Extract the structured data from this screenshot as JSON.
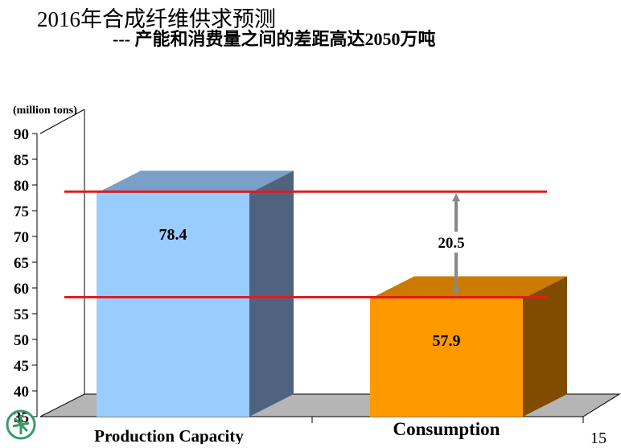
{
  "slide": {
    "title": "2016年合成纤维供求预测",
    "subtitle": "--- 产能和消费量之间的差距高达2050万吨",
    "page_number": "15"
  },
  "chart_data": {
    "type": "bar",
    "title": "2016年合成纤维供求预测",
    "ylabel": "(million tons)",
    "xlabel": "",
    "ylim": [
      35,
      90
    ],
    "yticks": [
      35,
      40,
      45,
      50,
      55,
      60,
      65,
      70,
      75,
      80,
      85,
      90
    ],
    "categories": [
      "Production Capacity",
      "Consumption"
    ],
    "values": [
      78.4,
      57.9
    ],
    "data_labels": [
      "78.4",
      "57.9"
    ],
    "colors": {
      "front": [
        "#99ccff",
        "#ff9900"
      ],
      "side": [
        "#4f6380",
        "#804c00"
      ],
      "top": [
        "#7a9fc8",
        "#cc7a00"
      ]
    },
    "reference_lines": [
      78.4,
      57.9
    ],
    "reference_line_color": "#e31c1c",
    "gap_annotation": "20.5",
    "style": "3d",
    "grid": false
  }
}
